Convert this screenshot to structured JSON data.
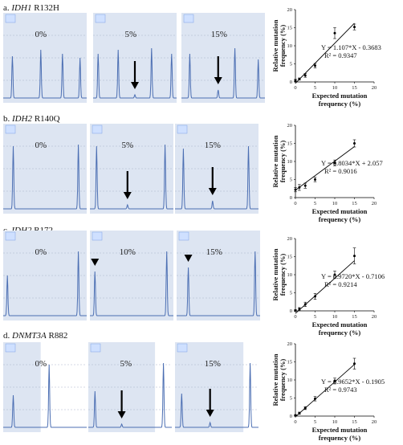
{
  "panels": [
    {
      "letter": "a.",
      "gene": "IDH1",
      "mutation": "R132H",
      "traces": [
        {
          "pct": "0%",
          "arrow": false,
          "arrow_peak": null,
          "peaks": [
            {
              "x": 0.11,
              "h": 0.52
            },
            {
              "x": 0.45,
              "h": 0.6
            },
            {
              "x": 0.71,
              "h": 0.55
            },
            {
              "x": 0.92,
              "h": 0.5
            }
          ]
        },
        {
          "pct": "5%",
          "arrow": true,
          "arrow_peak": 2,
          "peaks": [
            {
              "x": 0.06,
              "h": 0.55
            },
            {
              "x": 0.3,
              "h": 0.6
            },
            {
              "x": 0.5,
              "h": 0.04
            },
            {
              "x": 0.7,
              "h": 0.62
            },
            {
              "x": 0.94,
              "h": 0.55
            }
          ]
        },
        {
          "pct": "15%",
          "arrow": true,
          "arrow_peak": 1,
          "peaks": [
            {
              "x": 0.1,
              "h": 0.55
            },
            {
              "x": 0.44,
              "h": 0.1
            },
            {
              "x": 0.64,
              "h": 0.62
            },
            {
              "x": 0.92,
              "h": 0.48
            }
          ]
        }
      ],
      "chart": {
        "equation": "Y = 1.107*X - 0.3683",
        "r2": "R² = 0.9347",
        "x": [
          0,
          1,
          2.5,
          5,
          10,
          15
        ],
        "y": [
          0.4,
          0.8,
          1.8,
          4.5,
          13.5,
          15.2
        ],
        "err": [
          0.3,
          0.3,
          0.5,
          0.6,
          1.5,
          0.8
        ],
        "slope": 1.107,
        "intercept": -0.3683,
        "xlim": [
          0,
          20
        ],
        "ylim": [
          0,
          20
        ],
        "xticks": [
          "0",
          "5",
          "10",
          "15",
          "20"
        ],
        "yticks": [
          "0",
          "5",
          "10",
          "15",
          "20"
        ],
        "xlabel": [
          "Expected mutation",
          "frequency (%)"
        ],
        "ylabel": [
          "Relative mutation",
          "frequency (%)"
        ]
      }
    },
    {
      "letter": "b.",
      "gene": "IDH2",
      "mutation": "R140Q",
      "traces": [
        {
          "pct": "0%",
          "arrow": false,
          "arrow_peak": null,
          "peaks": [
            {
              "x": 0.12,
              "h": 0.78
            },
            {
              "x": 0.9,
              "h": 0.8
            }
          ]
        },
        {
          "pct": "5%",
          "arrow": true,
          "arrow_peak": 1,
          "peaks": [
            {
              "x": 0.08,
              "h": 0.78
            },
            {
              "x": 0.45,
              "h": 0.05
            },
            {
              "x": 0.9,
              "h": 0.8
            }
          ]
        },
        {
          "pct": "15%",
          "arrow": true,
          "arrow_peak": 1,
          "peaks": [
            {
              "x": 0.1,
              "h": 0.75
            },
            {
              "x": 0.45,
              "h": 0.1
            },
            {
              "x": 0.88,
              "h": 0.78
            }
          ]
        }
      ],
      "chart": {
        "equation": "Y = 0.8034*X + 2.057",
        "r2": "R² = 0.9016",
        "x": [
          0,
          1,
          2.5,
          5,
          10,
          15
        ],
        "y": [
          2.2,
          2.8,
          3.3,
          5.0,
          9.6,
          15.0
        ],
        "err": [
          0.6,
          0.8,
          0.7,
          0.6,
          0.8,
          1.0
        ],
        "slope": 0.8034,
        "intercept": 2.057,
        "xlim": [
          0,
          20
        ],
        "ylim": [
          0,
          20
        ],
        "xticks": [
          "0",
          "5",
          "10",
          "15",
          "20"
        ],
        "yticks": [
          "0",
          "5",
          "10",
          "15",
          "20"
        ],
        "xlabel": [
          "Expected mutation",
          "frequency (%)"
        ],
        "ylabel": [
          "Relative mutation",
          "frequency (%)"
        ]
      }
    },
    {
      "letter": "c.",
      "gene": "IDH2",
      "mutation": "R172",
      "traces": [
        {
          "pct": "0%",
          "arrow": false,
          "arrow_peak": null,
          "peaks": [
            {
              "x": 0.05,
              "h": 0.5
            },
            {
              "x": 0.9,
              "h": 0.8
            }
          ]
        },
        {
          "pct": "10%",
          "arrow": true,
          "arrow_peak": 0,
          "peaks": [
            {
              "x": 0.06,
              "h": 0.55
            },
            {
              "x": 0.92,
              "h": 0.8
            }
          ]
        },
        {
          "pct": "15%",
          "arrow": true,
          "arrow_peak": 0,
          "peaks": [
            {
              "x": 0.14,
              "h": 0.6
            },
            {
              "x": 0.94,
              "h": 0.8
            }
          ]
        }
      ],
      "chart": {
        "equation": "Y = 0.9720*X - 0.7106",
        "r2": "R² = 0.9214",
        "x": [
          0,
          1,
          2.5,
          5,
          10,
          15
        ],
        "y": [
          0.1,
          0.5,
          1.8,
          4.0,
          10.0,
          15.2
        ],
        "err": [
          0.2,
          0.4,
          0.6,
          0.8,
          1.0,
          2.2
        ],
        "slope": 0.972,
        "intercept": -0.7106,
        "xlim": [
          0,
          20
        ],
        "ylim": [
          0,
          20
        ],
        "xticks": [
          "0",
          "5",
          "10",
          "15",
          "20"
        ],
        "yticks": [
          "0",
          "5",
          "10",
          "15",
          "20"
        ],
        "xlabel": [
          "Expected mutation",
          "frequency (%)"
        ],
        "ylabel": [
          "Relative mutation",
          "frequency (%)"
        ]
      }
    },
    {
      "letter": "d.",
      "gene": "DNMT3A",
      "mutation": "R882",
      "traces": [
        {
          "pct": "0%",
          "arrow": false,
          "arrow_peak": null,
          "peaks": [
            {
              "x": 0.12,
              "h": 0.4
            },
            {
              "x": 0.55,
              "h": 0.78
            }
          ],
          "gray_after": 0.45
        },
        {
          "pct": "5%",
          "arrow": true,
          "arrow_peak": 1,
          "peaks": [
            {
              "x": 0.08,
              "h": 0.45
            },
            {
              "x": 0.4,
              "h": 0.04
            },
            {
              "x": 0.9,
              "h": 0.8
            }
          ],
          "gray_after": 0.8
        },
        {
          "pct": "15%",
          "arrow": true,
          "arrow_peak": 1,
          "peaks": [
            {
              "x": 0.08,
              "h": 0.42
            },
            {
              "x": 0.42,
              "h": 0.06
            },
            {
              "x": 0.9,
              "h": 0.8
            }
          ],
          "gray_after": 0.82
        }
      ],
      "chart": {
        "equation": "Y = 0.9652*X - 0.1905",
        "r2": "R² = 0.9743",
        "x": [
          0,
          1,
          2.5,
          5,
          10,
          15
        ],
        "y": [
          0.2,
          0.8,
          2.2,
          4.8,
          9.7,
          14.5
        ],
        "err": [
          0.2,
          0.3,
          0.4,
          0.6,
          0.8,
          1.5
        ],
        "slope": 0.9652,
        "intercept": -0.1905,
        "xlim": [
          0,
          20
        ],
        "ylim": [
          0,
          20
        ],
        "xticks": [
          "0",
          "5",
          "10",
          "15",
          "20"
        ],
        "yticks": [
          "0",
          "5",
          "10",
          "15",
          "20"
        ],
        "xlabel": [
          "Expected mutation",
          "frequency (%)"
        ],
        "ylabel": [
          "Relative mutation",
          "frequency (%)"
        ]
      }
    }
  ],
  "chart_data": [
    {
      "type": "scatter",
      "title": "",
      "xlabel": "Expected mutation frequency (%)",
      "ylabel": "Relative mutation frequency (%)",
      "xlim": [
        0,
        20
      ],
      "ylim": [
        0,
        20
      ],
      "series": [
        {
          "x": [
            0,
            1,
            2.5,
            5,
            10,
            15
          ],
          "y": [
            0.4,
            0.8,
            1.8,
            4.5,
            13.5,
            15.2
          ]
        }
      ],
      "annotations": [
        "Y = 1.107*X - 0.3683",
        "R² = 0.9347"
      ]
    },
    {
      "type": "scatter",
      "title": "",
      "xlabel": "Expected mutation frequency (%)",
      "ylabel": "Relative mutation frequency (%)",
      "xlim": [
        0,
        20
      ],
      "ylim": [
        0,
        20
      ],
      "series": [
        {
          "x": [
            0,
            1,
            2.5,
            5,
            10,
            15
          ],
          "y": [
            2.2,
            2.8,
            3.3,
            5.0,
            9.6,
            15.0
          ]
        }
      ],
      "annotations": [
        "Y = 0.8034*X + 2.057",
        "R² = 0.9016"
      ]
    },
    {
      "type": "scatter",
      "title": "",
      "xlabel": "Expected mutation frequency (%)",
      "ylabel": "Relative mutation frequency (%)",
      "xlim": [
        0,
        20
      ],
      "ylim": [
        0,
        20
      ],
      "series": [
        {
          "x": [
            0,
            1,
            2.5,
            5,
            10,
            15
          ],
          "y": [
            0.1,
            0.5,
            1.8,
            4.0,
            10.0,
            15.2
          ]
        }
      ],
      "annotations": [
        "Y = 0.9720*X - 0.7106",
        "R² = 0.9214"
      ]
    },
    {
      "type": "scatter",
      "title": "",
      "xlabel": "Expected mutation frequency (%)",
      "ylabel": "Relative mutation frequency (%)",
      "xlim": [
        0,
        20
      ],
      "ylim": [
        0,
        20
      ],
      "series": [
        {
          "x": [
            0,
            1,
            2.5,
            5,
            10,
            15
          ],
          "y": [
            0.2,
            0.8,
            2.2,
            4.8,
            9.7,
            14.5
          ]
        }
      ],
      "annotations": [
        "Y = 0.9652*X - 0.1905",
        "R² = 0.9743"
      ]
    }
  ]
}
